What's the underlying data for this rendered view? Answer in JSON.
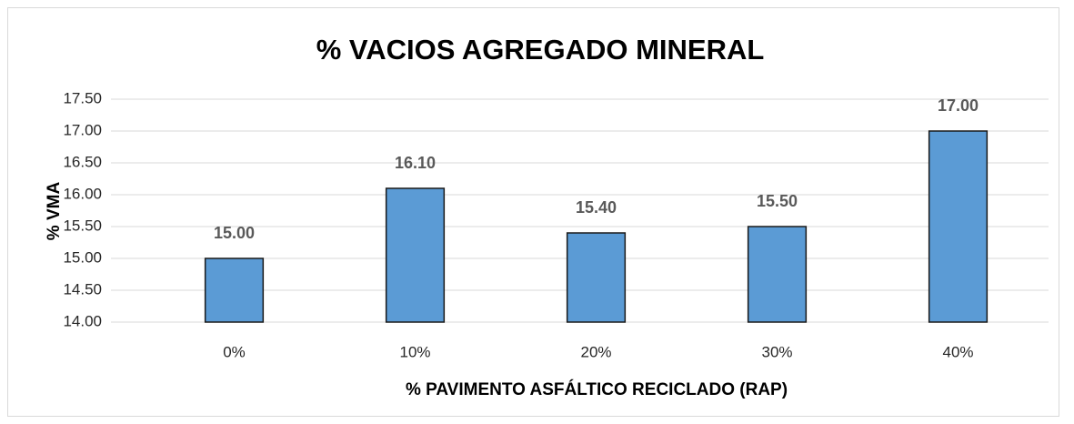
{
  "chart_data": {
    "type": "bar",
    "title": "% VACIOS AGREGADO MINERAL",
    "x_label": "% PAVIMENTO ASFÁLTICO RECICLADO (RAP)",
    "y_label": "% VMA",
    "categories": [
      "0%",
      "10%",
      "20%",
      "30%",
      "40%"
    ],
    "values": [
      15.0,
      16.1,
      15.4,
      15.5,
      17.0
    ],
    "value_labels": [
      "15.00",
      "16.10",
      "15.40",
      "15.50",
      "17.00"
    ],
    "color": "#5b9bd5",
    "ylim": [
      14,
      17.5
    ],
    "yticks": [
      {
        "value": 14,
        "label": "14.00"
      },
      {
        "value": 14.5,
        "label": "14.50"
      },
      {
        "value": 15,
        "label": "15.00"
      },
      {
        "value": 15.5,
        "label": "15.50"
      },
      {
        "value": 16,
        "label": "16.00"
      },
      {
        "value": 16.5,
        "label": "16.50"
      },
      {
        "value": 17,
        "label": "17.00"
      },
      {
        "value": 17.5,
        "label": "17.50"
      }
    ],
    "grid": true
  }
}
